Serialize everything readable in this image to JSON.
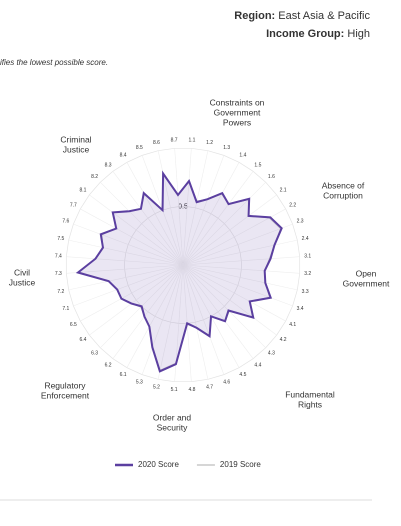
{
  "header": {
    "region_label": "Region:",
    "region": "East Asia & Pacific",
    "income_label": "Income Group:",
    "income": "High",
    "note": "ifies the lowest possible score."
  },
  "chart_data": {
    "type": "radar",
    "categories": [
      "1.1",
      "1.2",
      "1.3",
      "1.4",
      "1.5",
      "1.6",
      "2.1",
      "2.2",
      "2.3",
      "2.4",
      "3.1",
      "3.2",
      "3.3",
      "3.4",
      "4.1",
      "4.2",
      "4.3",
      "4.4",
      "4.5",
      "4.6",
      "4.7",
      "4.8",
      "5.1",
      "5.2",
      "5.3",
      "6.1",
      "6.2",
      "6.3",
      "6.4",
      "6.5",
      "7.1",
      "7.2",
      "7.3",
      "7.4",
      "7.5",
      "7.6",
      "7.7",
      "8.1",
      "8.2",
      "8.3",
      "8.4",
      "8.5",
      "8.6",
      "8.7"
    ],
    "series": [
      {
        "name": "2020 Score",
        "color": "#5b3fa0",
        "values": [
          0.72,
          0.55,
          0.6,
          0.7,
          0.65,
          0.8,
          0.7,
          0.85,
          0.9,
          0.8,
          0.75,
          0.7,
          0.72,
          0.8,
          0.65,
          0.75,
          0.55,
          0.6,
          0.5,
          0.65,
          0.55,
          0.5,
          0.85,
          0.93,
          0.75,
          0.6,
          0.55,
          0.5,
          0.55,
          0.6,
          0.6,
          0.65,
          0.9,
          0.75,
          0.7,
          0.75,
          0.65,
          0.75,
          0.65,
          0.6,
          0.7,
          0.5,
          0.8,
          0.6
        ]
      },
      {
        "name": "2019 Score",
        "color": "#c8c8c8",
        "values": [
          0.71,
          0.56,
          0.6,
          0.69,
          0.65,
          0.79,
          0.7,
          0.84,
          0.89,
          0.8,
          0.74,
          0.7,
          0.72,
          0.79,
          0.65,
          0.74,
          0.56,
          0.6,
          0.5,
          0.64,
          0.55,
          0.51,
          0.84,
          0.92,
          0.75,
          0.6,
          0.55,
          0.51,
          0.55,
          0.6,
          0.6,
          0.65,
          0.89,
          0.75,
          0.7,
          0.74,
          0.65,
          0.75,
          0.65,
          0.6,
          0.69,
          0.51,
          0.79,
          0.6
        ]
      }
    ],
    "factors": [
      {
        "lines": [
          "Constraints on",
          "Government",
          "Powers"
        ],
        "color": "#2e7d32"
      },
      {
        "lines": [
          "Absence of",
          "Corruption"
        ],
        "color": "#6a9a1f"
      },
      {
        "lines": [
          "Open",
          "Government"
        ],
        "color": "#2e9a4a"
      },
      {
        "lines": [
          "Fundamental",
          "Rights"
        ],
        "color": "#2f6db5"
      },
      {
        "lines": [
          "Order and",
          "Security"
        ],
        "color": "#333333"
      },
      {
        "lines": [
          "Regulatory",
          "Enforcement"
        ],
        "color": "#8e2c8e"
      },
      {
        "lines": [
          "Civil",
          "Justice"
        ],
        "color": "#9b1c1c"
      },
      {
        "lines": [
          "Criminal",
          "Justice"
        ],
        "color": "#e07b2a"
      }
    ],
    "rlim": [
      0,
      1
    ],
    "rticks": [
      0,
      0.5
    ]
  }
}
